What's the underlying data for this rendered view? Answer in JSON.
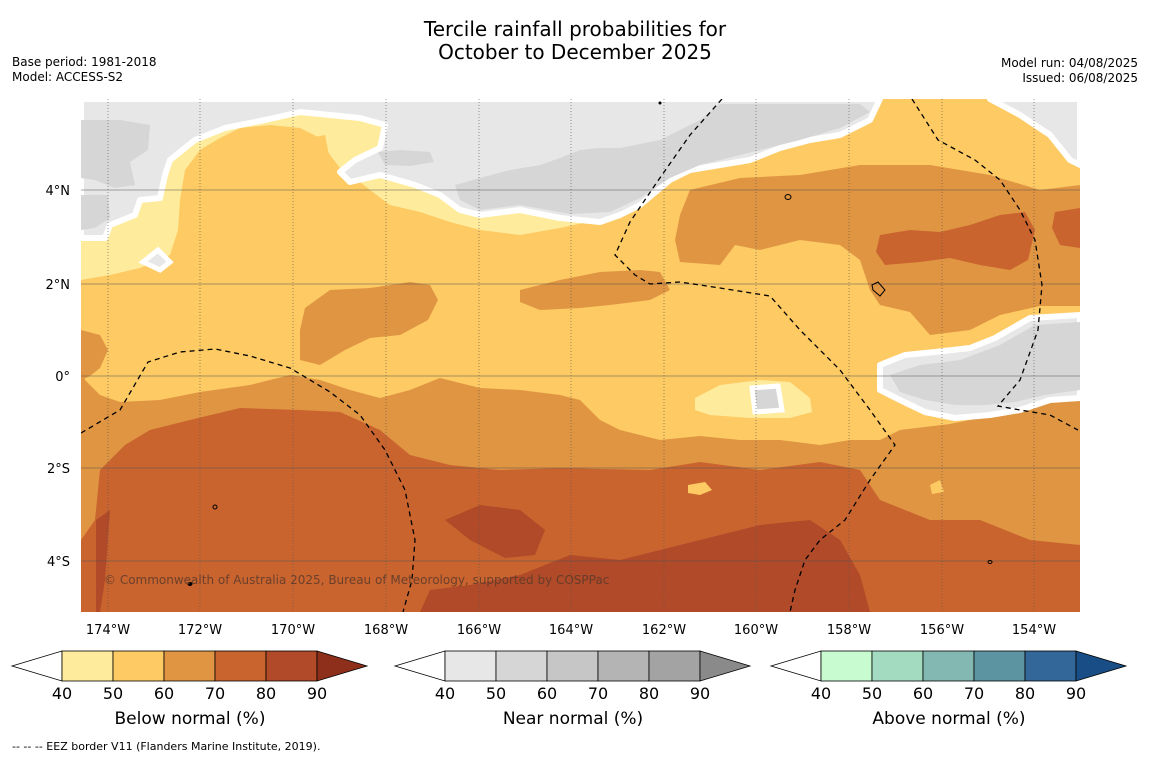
{
  "title_line1": "Tercile rainfall probabilities for",
  "title_line2": "October to December 2025",
  "base_period": "Base period: 1981-2018",
  "model": "Model: ACCESS-S2",
  "model_run": "Model run: 04/08/2025",
  "issued": "Issued: 06/08/2025",
  "copyright": "© Commonwealth of Australia 2025, Bureau of Meteorology, supported by COSPPac",
  "footer": "--  --  -- EEZ border V11 (Flanders Marine Institute, 2019).",
  "map": {
    "lon_range": [
      -174.6,
      -153.0
    ],
    "lat_range": [
      -5.0,
      6.0
    ],
    "lon_ticks": [
      "174°W",
      "172°W",
      "170°W",
      "168°W",
      "166°W",
      "164°W",
      "162°W",
      "160°W",
      "158°W",
      "156°W",
      "154°W"
    ],
    "lat_ticks": [
      "4°N",
      "2°N",
      "0°",
      "2°S",
      "4°S"
    ]
  },
  "colorbars": [
    {
      "caption": "Below normal (%)",
      "ticks": [
        "40",
        "50",
        "60",
        "70",
        "80",
        "90"
      ],
      "colors": [
        "#ffffff",
        "#ffeb9c",
        "#fdca63",
        "#e09542",
        "#c9642f",
        "#b04a28",
        "#8e2f1c"
      ]
    },
    {
      "caption": "Near normal (%)",
      "ticks": [
        "40",
        "50",
        "60",
        "70",
        "80",
        "90"
      ],
      "colors": [
        "#ffffff",
        "#e7e7e7",
        "#d6d6d6",
        "#c6c6c6",
        "#b4b4b4",
        "#a3a3a3",
        "#8a8a8a"
      ]
    },
    {
      "caption": "Above normal (%)",
      "ticks": [
        "40",
        "50",
        "60",
        "70",
        "80",
        "90"
      ],
      "colors": [
        "#ffffff",
        "#c8fbd0",
        "#a3dbc0",
        "#83b7b1",
        "#5c94a2",
        "#336799",
        "#194d85"
      ]
    }
  ]
}
